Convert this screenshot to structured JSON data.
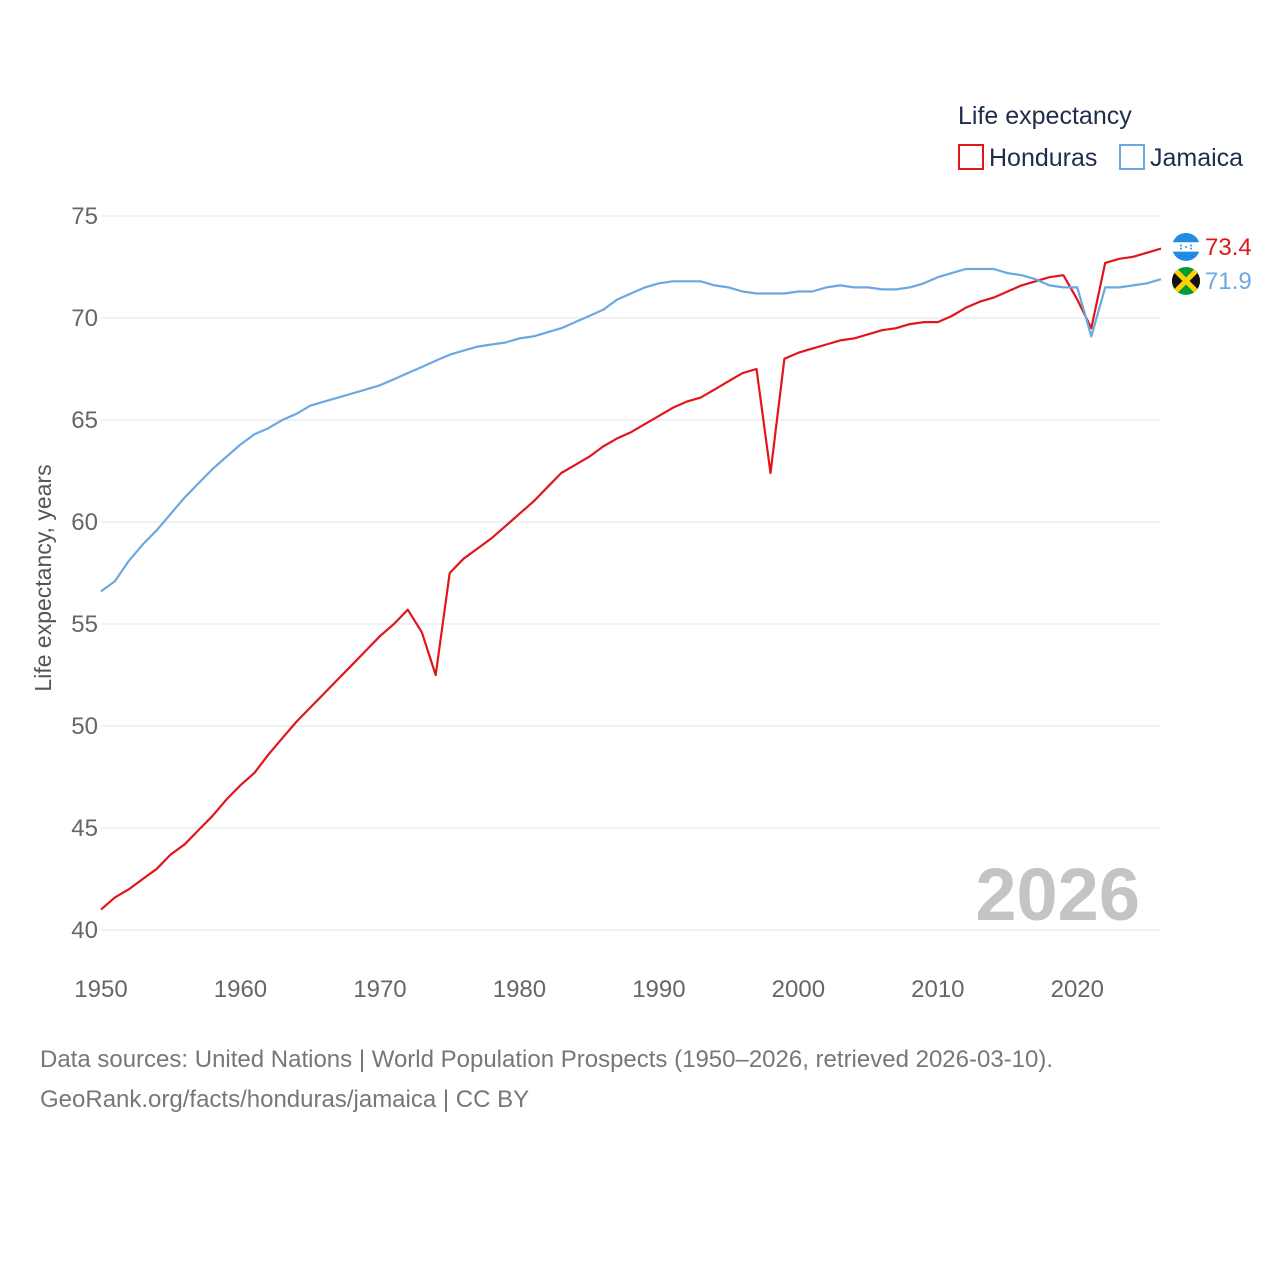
{
  "chart_data": {
    "type": "line",
    "title": "",
    "xlabel": "",
    "ylabel": "Life expectancy, years",
    "xlim": [
      1950,
      2026
    ],
    "ylim": [
      40,
      75
    ],
    "x_ticks": [
      1950,
      1960,
      1970,
      1980,
      1990,
      2000,
      2010,
      2020
    ],
    "y_ticks": [
      40,
      45,
      50,
      55,
      60,
      65,
      70,
      75
    ],
    "grid": true,
    "legend_title": "Life expectancy",
    "legend_position": "top-right",
    "year_label": "2026",
    "x": [
      1950,
      1951,
      1952,
      1953,
      1954,
      1955,
      1956,
      1957,
      1958,
      1959,
      1960,
      1961,
      1962,
      1963,
      1964,
      1965,
      1966,
      1967,
      1968,
      1969,
      1970,
      1971,
      1972,
      1973,
      1974,
      1975,
      1976,
      1977,
      1978,
      1979,
      1980,
      1981,
      1982,
      1983,
      1984,
      1985,
      1986,
      1987,
      1988,
      1989,
      1990,
      1991,
      1992,
      1993,
      1994,
      1995,
      1996,
      1997,
      1998,
      1999,
      2000,
      2001,
      2002,
      2003,
      2004,
      2005,
      2006,
      2007,
      2008,
      2009,
      2010,
      2011,
      2012,
      2013,
      2014,
      2015,
      2016,
      2017,
      2018,
      2019,
      2020,
      2021,
      2022,
      2023,
      2024,
      2025,
      2026
    ],
    "series": [
      {
        "name": "Honduras",
        "color": "#e0161b",
        "end_label": "73.4",
        "flag": "honduras-flag",
        "values": [
          41.0,
          41.6,
          42.0,
          42.5,
          43.0,
          43.7,
          44.2,
          44.9,
          45.6,
          46.4,
          47.1,
          47.7,
          48.6,
          49.4,
          50.2,
          50.9,
          51.6,
          52.3,
          53.0,
          53.7,
          54.4,
          55.0,
          55.7,
          54.6,
          52.5,
          57.5,
          58.2,
          58.7,
          59.2,
          59.8,
          60.4,
          61.0,
          61.7,
          62.4,
          62.8,
          63.2,
          63.7,
          64.1,
          64.4,
          64.8,
          65.2,
          65.6,
          65.9,
          66.1,
          66.5,
          66.9,
          67.3,
          67.5,
          62.4,
          68.0,
          68.3,
          68.5,
          68.7,
          68.9,
          69.0,
          69.2,
          69.4,
          69.5,
          69.7,
          69.8,
          69.8,
          70.1,
          70.5,
          70.8,
          71.0,
          71.3,
          71.6,
          71.8,
          72.0,
          72.1,
          70.9,
          69.5,
          72.7,
          72.9,
          73.0,
          73.2,
          73.4
        ]
      },
      {
        "name": "Jamaica",
        "color": "#6ba8e2",
        "end_label": "71.9",
        "flag": "jamaica-flag",
        "values": [
          56.6,
          57.1,
          58.1,
          58.9,
          59.6,
          60.4,
          61.2,
          61.9,
          62.6,
          63.2,
          63.8,
          64.3,
          64.6,
          65.0,
          65.3,
          65.7,
          65.9,
          66.1,
          66.3,
          66.5,
          66.7,
          67.0,
          67.3,
          67.6,
          67.9,
          68.2,
          68.4,
          68.6,
          68.7,
          68.8,
          69.0,
          69.1,
          69.3,
          69.5,
          69.8,
          70.1,
          70.4,
          70.9,
          71.2,
          71.5,
          71.7,
          71.8,
          71.8,
          71.8,
          71.6,
          71.5,
          71.3,
          71.2,
          71.2,
          71.2,
          71.3,
          71.3,
          71.5,
          71.6,
          71.5,
          71.5,
          71.4,
          71.4,
          71.5,
          71.7,
          72.0,
          72.2,
          72.4,
          72.4,
          72.4,
          72.2,
          72.1,
          71.9,
          71.6,
          71.5,
          71.5,
          69.1,
          71.5,
          71.5,
          71.6,
          71.7,
          71.9
        ]
      }
    ]
  },
  "footer": {
    "line1": "Data sources: United Nations | World Population Prospects (1950–2026, retrieved 2026-03-10).",
    "line2": "GeoRank.org/facts/honduras/jamaica | CC BY"
  }
}
